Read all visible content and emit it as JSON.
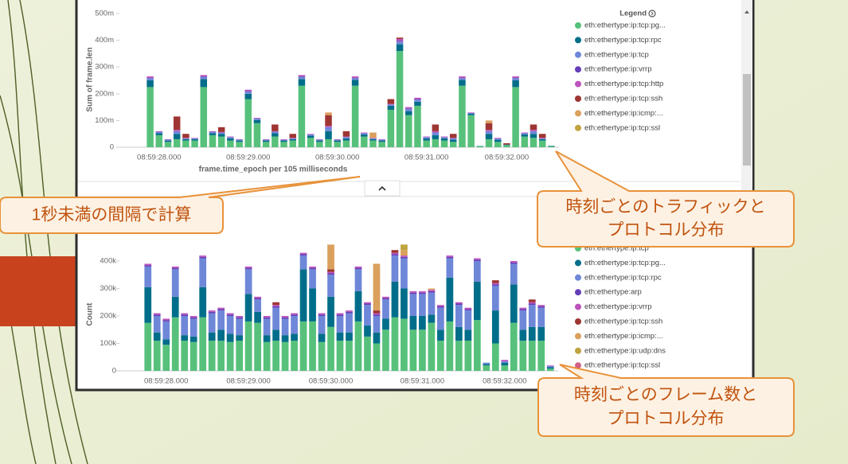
{
  "chart_data": [
    {
      "type": "bar",
      "stacked": true,
      "y_label": "Sum of frame.len",
      "x_label": "frame.time_epoch per 105 milliseconds",
      "legend_title": "Legend",
      "categories": [
        null,
        "08:59:28.000",
        null,
        null,
        null,
        null,
        null,
        null,
        null,
        null,
        null,
        "08:59:29.000",
        null,
        null,
        null,
        null,
        null,
        null,
        null,
        null,
        null,
        "08:59:30.000",
        null,
        null,
        null,
        null,
        null,
        null,
        null,
        null,
        null,
        "08:59:31.000",
        null,
        null,
        null,
        null,
        null,
        null,
        null,
        null,
        "08:59:32.000",
        null,
        null,
        null,
        null,
        null
      ],
      "ylim": [
        0,
        500000000.0
      ],
      "yticks": [
        0,
        {
          "value": 100000000.0,
          "label": "100m"
        },
        {
          "value": 200000000.0,
          "label": "200m"
        },
        {
          "value": 300000000.0,
          "label": "300m"
        },
        {
          "value": 400000000.0,
          "label": "400m"
        },
        {
          "value": 500000000.0,
          "label": "500m"
        }
      ],
      "series": [
        {
          "name": "eth:ethertype:ip:tcp:pg...",
          "color": "#57c17b",
          "values": [
            225000000.0,
            45000000.0,
            20000000.0,
            30000000.0,
            25000000.0,
            25000000.0,
            225000000.0,
            45000000.0,
            40000000.0,
            25000000.0,
            20000000.0,
            180000000.0,
            90000000.0,
            20000000.0,
            40000000.0,
            20000000.0,
            25000000.0,
            230000000.0,
            35000000.0,
            20000000.0,
            30000000.0,
            20000000.0,
            25000000.0,
            230000000.0,
            40000000.0,
            25000000.0,
            20000000.0,
            140000000.0,
            360000000.0,
            120000000.0,
            155000000.0,
            25000000.0,
            30000000.0,
            25000000.0,
            20000000.0,
            230000000.0,
            120000000.0,
            4000000.0,
            30000000.0,
            20000000.0,
            8000000.0,
            225000000.0,
            40000000.0,
            35000000.0,
            25000000.0,
            3000000.0
          ]
        },
        {
          "name": "eth:ethertype:ip:tcp:rpc",
          "color": "#006e8a",
          "values": [
            25000000.0,
            8000000.0,
            5000000.0,
            20000000.0,
            5000000.0,
            5000000.0,
            30000000.0,
            8000000.0,
            10000000.0,
            8000000.0,
            5000000.0,
            20000000.0,
            12000000.0,
            5000000.0,
            12000000.0,
            5000000.0,
            5000000.0,
            25000000.0,
            8000000.0,
            5000000.0,
            30000000.0,
            5000000.0,
            8000000.0,
            22000000.0,
            8000000.0,
            5000000.0,
            5000000.0,
            15000000.0,
            25000000.0,
            15000000.0,
            15000000.0,
            8000000.0,
            15000000.0,
            8000000.0,
            8000000.0,
            22000000.0,
            5000000.0,
            1000000.0,
            20000000.0,
            8000000.0,
            2000000.0,
            25000000.0,
            8000000.0,
            15000000.0,
            5000000.0,
            2000000.0
          ]
        },
        {
          "name": "eth:ethertype:ip:tcp",
          "color": "#6f87d8",
          "values": [
            8000000.0,
            4000000.0,
            3000000.0,
            10000000.0,
            3000000.0,
            3000000.0,
            8000000.0,
            4000000.0,
            5000000.0,
            4000000.0,
            3000000.0,
            8000000.0,
            5000000.0,
            3000000.0,
            6000000.0,
            3000000.0,
            3000000.0,
            8000000.0,
            4000000.0,
            3000000.0,
            15000000.0,
            3000000.0,
            5000000.0,
            6000000.0,
            4000000.0,
            3000000.0,
            3000000.0,
            5000000.0,
            10000000.0,
            8000000.0,
            8000000.0,
            4000000.0,
            10000000.0,
            4000000.0,
            5000000.0,
            6000000.0,
            3000000.0,
            0,
            10000000.0,
            4000000.0,
            0,
            8000000.0,
            4000000.0,
            10000000.0,
            3000000.0,
            0
          ]
        },
        {
          "name": "eth:ethertype:ip:vrrp",
          "color": "#663db8",
          "values": [
            2000000.0,
            1000000.0,
            0,
            0,
            0,
            0,
            2000000.0,
            1000000.0,
            0,
            1000000.0,
            0,
            2000000.0,
            1000000.0,
            0,
            0,
            0,
            0,
            2000000.0,
            1000000.0,
            0,
            0,
            0,
            0,
            2000000.0,
            1000000.0,
            0,
            0,
            0,
            3000000.0,
            2000000.0,
            2000000.0,
            1000000.0,
            0,
            1000000.0,
            0,
            2000000.0,
            0,
            0,
            0,
            1000000.0,
            0,
            2000000.0,
            1000000.0,
            0,
            0,
            0
          ]
        },
        {
          "name": "eth:ethertype:ip:tcp:http",
          "color": "#bc52bc",
          "values": [
            5000000.0,
            2000000.0,
            2000000.0,
            5000000.0,
            2000000.0,
            2000000.0,
            5000000.0,
            2000000.0,
            2000000.0,
            2000000.0,
            2000000.0,
            5000000.0,
            2000000.0,
            2000000.0,
            2000000.0,
            2000000.0,
            2000000.0,
            5000000.0,
            2000000.0,
            2000000.0,
            5000000.0,
            2000000.0,
            2000000.0,
            5000000.0,
            2000000.0,
            2000000.0,
            2000000.0,
            2000000.0,
            7000000.0,
            5000000.0,
            5000000.0,
            2000000.0,
            5000000.0,
            2000000.0,
            2000000.0,
            5000000.0,
            2000000.0,
            0,
            5000000.0,
            2000000.0,
            0,
            5000000.0,
            2000000.0,
            5000000.0,
            2000000.0,
            0
          ]
        },
        {
          "name": "eth:ethertype:ip:tcp:ssh",
          "color": "#9e3533",
          "values": [
            0,
            0,
            0,
            50000000.0,
            15000000.0,
            0,
            0,
            0,
            18000000.0,
            0,
            0,
            0,
            0,
            0,
            25000000.0,
            0,
            15000000.0,
            0,
            0,
            0,
            40000000.0,
            0,
            20000000.0,
            0,
            0,
            0,
            0,
            18000000.0,
            5000000.0,
            0,
            0,
            0,
            25000000.0,
            0,
            15000000.0,
            0,
            0,
            0,
            25000000.0,
            0,
            5000000.0,
            0,
            0,
            20000000.0,
            15000000.0,
            0
          ]
        },
        {
          "name": "eth:ethertype:ip:icmp:...",
          "color": "#daa05d",
          "values": [
            0,
            0,
            0,
            0,
            0,
            0,
            0,
            0,
            0,
            0,
            0,
            0,
            0,
            0,
            0,
            0,
            0,
            0,
            0,
            0,
            10000000.0,
            0,
            0,
            0,
            0,
            20000000.0,
            0,
            0,
            0,
            0,
            0,
            0,
            0,
            0,
            0,
            0,
            0,
            0,
            10000000.0,
            0,
            0,
            0,
            0,
            0,
            0,
            0
          ]
        },
        {
          "name": "eth:ethertype:ip:tcp:ssl",
          "color": "#bfa440",
          "values": [
            0,
            0,
            0,
            0,
            0,
            0,
            0,
            0,
            0,
            0,
            0,
            0,
            0,
            0,
            0,
            0,
            0,
            0,
            0,
            0,
            0,
            0,
            0,
            0,
            0,
            0,
            0,
            0,
            0,
            0,
            0,
            0,
            0,
            0,
            0,
            0,
            0,
            0,
            0,
            0,
            0,
            0,
            0,
            0,
            0,
            0
          ]
        }
      ],
      "annotations": [
        [
          "1秒未満の間隔で計算"
        ],
        [
          "時刻ごとのトラフィックと",
          "プロトコル分布"
        ]
      ]
    },
    {
      "type": "bar",
      "stacked": true,
      "y_label": "Count",
      "categories": [
        null,
        null,
        "08:59:28.000",
        null,
        null,
        null,
        null,
        null,
        null,
        null,
        null,
        "08:59:29.000",
        null,
        null,
        null,
        null,
        null,
        null,
        null,
        null,
        "08:59:30.000",
        null,
        null,
        null,
        null,
        null,
        null,
        null,
        null,
        null,
        "08:59:31.000",
        null,
        null,
        null,
        null,
        null,
        null,
        null,
        null,
        "08:59:32.000",
        null,
        null,
        null,
        null,
        null
      ],
      "ylim": [
        0,
        500000.0
      ],
      "yticks": [
        0,
        {
          "value": 100000.0,
          "label": "100k"
        },
        {
          "value": 200000.0,
          "label": "200k"
        },
        {
          "value": 300000.0,
          "label": "300k"
        },
        {
          "value": 400000.0,
          "label": "400k"
        }
      ],
      "series": [
        {
          "name": "eth:ethertype:ip:tcp",
          "color": "#57c17b",
          "values": [
            175000.0,
            110000.0,
            95000.0,
            195000.0,
            110000.0,
            105000.0,
            195000.0,
            110000.0,
            110000.0,
            105000.0,
            110000.0,
            180000.0,
            175000.0,
            105000.0,
            110000.0,
            105000.0,
            110000.0,
            180000.0,
            180000.0,
            105000.0,
            160000.0,
            110000.0,
            110000.0,
            180000.0,
            125000.0,
            100000.0,
            150000.0,
            195000.0,
            190000.0,
            150000.0,
            150000.0,
            175000.0,
            110000.0,
            180000.0,
            110000.0,
            110000.0,
            185000.0,
            20000.0,
            100000.0,
            20000.0,
            175000.0,
            110000.0,
            110000.0,
            110000.0,
            8000.0
          ]
        },
        {
          "name": "eth:ethertype:ip:tcp:pg...",
          "color": "#006e8a",
          "values": [
            130000.0,
            30000.0,
            20000.0,
            75000.0,
            20000.0,
            20000.0,
            110000.0,
            30000.0,
            40000.0,
            30000.0,
            20000.0,
            100000.0,
            40000.0,
            25000.0,
            40000.0,
            25000.0,
            25000.0,
            190000.0,
            120000.0,
            30000.0,
            110000.0,
            30000.0,
            30000.0,
            110000.0,
            40000.0,
            40000.0,
            40000.0,
            130000.0,
            110000.0,
            50000.0,
            50000.0,
            30000.0,
            40000.0,
            160000.0,
            50000.0,
            40000.0,
            140000.0,
            5000.0,
            120000.0,
            10000.0,
            140000.0,
            40000.0,
            50000.0,
            50000.0,
            5000.0
          ]
        },
        {
          "name": "eth:ethertype:ip:tcp:rpc",
          "color": "#6f87d8",
          "values": [
            75000.0,
            60000.0,
            65000.0,
            100000.0,
            70000.0,
            65000.0,
            105000.0,
            70000.0,
            70000.0,
            65000.0,
            60000.0,
            90000.0,
            45000.0,
            60000.0,
            80000.0,
            60000.0,
            65000.0,
            50000.0,
            70000.0,
            65000.0,
            80000.0,
            60000.0,
            70000.0,
            80000.0,
            75000.0,
            60000.0,
            70000.0,
            95000.0,
            110000.0,
            80000.0,
            80000.0,
            80000.0,
            80000.0,
            70000.0,
            80000.0,
            70000.0,
            75000.0,
            5000.0,
            90000.0,
            5000.0,
            75000.0,
            70000.0,
            80000.0,
            70000.0,
            5000.0
          ]
        },
        {
          "name": "eth:ethertype:arp",
          "color": "#663db8",
          "values": [
            5000.0,
            5000.0,
            5000.0,
            5000.0,
            5000.0,
            5000.0,
            5000.0,
            5000.0,
            5000.0,
            5000.0,
            5000.0,
            5000.0,
            5000.0,
            5000.0,
            5000.0,
            5000.0,
            5000.0,
            5000.0,
            5000.0,
            5000.0,
            5000.0,
            5000.0,
            5000.0,
            5000.0,
            5000.0,
            5000.0,
            5000.0,
            5000.0,
            5000.0,
            5000.0,
            5000.0,
            5000.0,
            5000.0,
            5000.0,
            5000.0,
            5000.0,
            5000.0,
            0,
            5000.0,
            0,
            5000.0,
            5000.0,
            5000.0,
            5000.0,
            0
          ]
        },
        {
          "name": "eth:ethertype:ip:vrrp",
          "color": "#bc52bc",
          "values": [
            5000.0,
            5000.0,
            5000.0,
            5000.0,
            5000.0,
            5000.0,
            5000.0,
            5000.0,
            5000.0,
            5000.0,
            5000.0,
            5000.0,
            5000.0,
            5000.0,
            5000.0,
            5000.0,
            5000.0,
            5000.0,
            5000.0,
            5000.0,
            5000.0,
            5000.0,
            5000.0,
            5000.0,
            5000.0,
            5000.0,
            5000.0,
            5000.0,
            5000.0,
            5000.0,
            5000.0,
            5000.0,
            5000.0,
            5000.0,
            5000.0,
            5000.0,
            5000.0,
            0,
            5000.0,
            5000.0,
            5000.0,
            5000.0,
            5000.0,
            5000.0,
            2000.0
          ]
        },
        {
          "name": "eth:ethertype:ip:tcp:ssh",
          "color": "#9e3533",
          "values": [
            0,
            0,
            0,
            0,
            0,
            0,
            0,
            0,
            0,
            0,
            0,
            0,
            0,
            0,
            10000.0,
            0,
            0,
            0,
            0,
            0,
            10000.0,
            0,
            0,
            0,
            0,
            10000.0,
            0,
            10000.0,
            0,
            0,
            0,
            0,
            0,
            0,
            0,
            0,
            0,
            0,
            10000.0,
            0,
            0,
            0,
            10000.0,
            0,
            0
          ]
        },
        {
          "name": "eth:ethertype:ip:icmp:...",
          "color": "#daa05d",
          "values": [
            0,
            0,
            0,
            0,
            0,
            0,
            0,
            0,
            0,
            0,
            0,
            0,
            0,
            0,
            0,
            0,
            0,
            0,
            0,
            0,
            90000.0,
            0,
            0,
            0,
            0,
            170000.0,
            0,
            0,
            20000.0,
            0,
            0,
            5000.0,
            0,
            0,
            0,
            0,
            0,
            0,
            0,
            0,
            0,
            0,
            0,
            0,
            0
          ]
        },
        {
          "name": "eth:ethertype:ip:udp:dns",
          "color": "#bfa440",
          "values": [
            0,
            0,
            0,
            0,
            0,
            0,
            0,
            0,
            0,
            0,
            0,
            0,
            0,
            0,
            0,
            0,
            0,
            0,
            0,
            0,
            0,
            0,
            0,
            0,
            0,
            0,
            0,
            0,
            20000.0,
            0,
            0,
            0,
            0,
            0,
            0,
            0,
            0,
            0,
            0,
            0,
            0,
            0,
            0,
            0,
            0
          ]
        },
        {
          "name": "eth:ethertype:ip:tcp:ssl",
          "color": "#d36086",
          "values": [
            0,
            0,
            0,
            0,
            0,
            0,
            0,
            0,
            0,
            0,
            0,
            0,
            0,
            0,
            0,
            0,
            0,
            0,
            0,
            0,
            0,
            0,
            0,
            0,
            0,
            0,
            0,
            0,
            0,
            0,
            0,
            0,
            0,
            0,
            0,
            0,
            0,
            0,
            0,
            0,
            0,
            0,
            0,
            0,
            0
          ]
        }
      ],
      "annotations": [
        [
          "時刻ごとのフレーム数と",
          "プロトコル分布"
        ]
      ]
    }
  ]
}
